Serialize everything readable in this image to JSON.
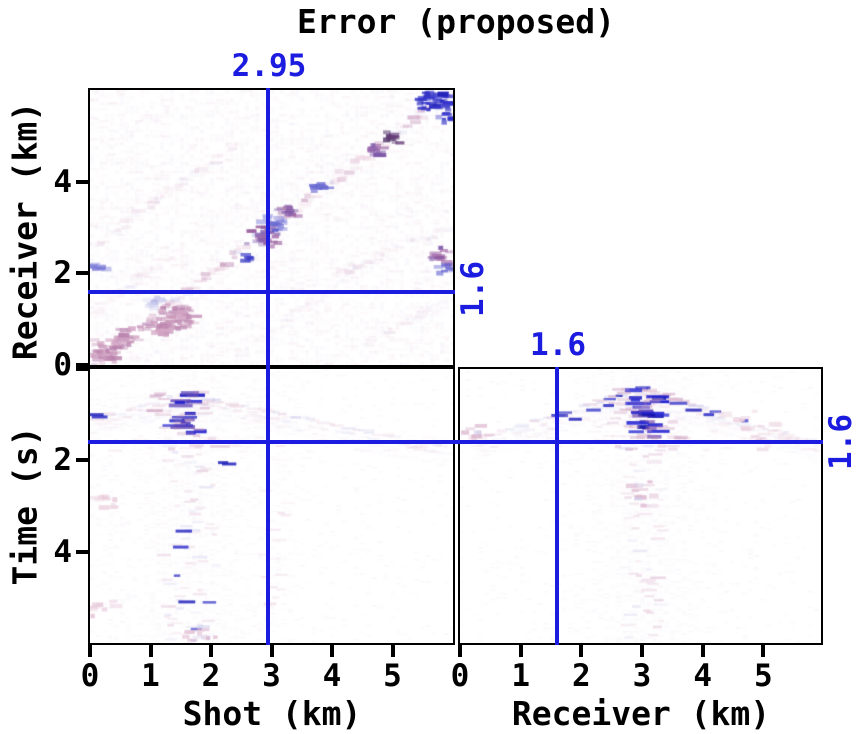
{
  "title": "Error (proposed)",
  "colors": {
    "accent_blue": "#1c1ce0",
    "axis_black": "#000000",
    "background": "#ffffff"
  },
  "markers": {
    "shot_line_km": 2.95,
    "receiver_line_km": 1.6,
    "time_line_s": 1.6,
    "labels": {
      "shot": "2.95",
      "receiver_side": "1.6",
      "receiver_top": "1.6",
      "time_side": "1.6"
    }
  },
  "data_palettes": {
    "pale": [
      "#f4e6ee",
      "#ecdcea",
      "#e6e2f4",
      "#dcdcf2",
      "#f2dce8"
    ],
    "palepink": [
      "#eed5e2",
      "#e6c6d8",
      "#f2e0ea"
    ],
    "mauvepale": [
      "#e0bcd2",
      "#d4a8c6",
      "#e8ccdc",
      "#cfcfee"
    ],
    "mauve": [
      "#d5a8c5",
      "#c490b4",
      "#ba82ae",
      "#cc9ec0"
    ],
    "lav": [
      "#c9c9ec",
      "#b4b4e4",
      "#dcdcf4"
    ],
    "purple": [
      "#9a5f9e",
      "#8a62b0",
      "#a871ae",
      "#7a55a8"
    ],
    "bluemix": [
      "#5555cc",
      "#8888dd",
      "#7070d4"
    ],
    "blue": [
      "#3333cc",
      "#2222bb",
      "#4444cc",
      "#2a2ac4"
    ],
    "dark": [
      "#55356a",
      "#4a2a62",
      "#663a77"
    ],
    "strong": [
      "#1818c0",
      "#2020d2",
      "#1212a8",
      "#6048b8",
      "#2a2ad4"
    ]
  },
  "chart_data": [
    {
      "type": "heatmap",
      "name": "error-shot-vs-receiver",
      "xlabel": "",
      "ylabel": "Receiver (km)",
      "xlim": [
        0,
        6
      ],
      "ylim": [
        0,
        6
      ],
      "y_direction": "up",
      "xticks": [],
      "yticks": [
        0,
        2,
        4
      ],
      "crosshair": {
        "x_km": 2.95,
        "y_km": 1.6
      },
      "description": "Residual error amplitude map, mostly near zero (white) with faint red/blue noise concentrated along the shot=receiver diagonal",
      "features": [
        {
          "type": "noise",
          "cell": [
            5,
            4
          ],
          "prob": 0.5,
          "alpha": [
            0.05,
            0.22
          ],
          "palette": "pale"
        },
        {
          "type": "noise",
          "cell": [
            9,
            3
          ],
          "prob": 0.2,
          "alpha": [
            0.05,
            0.18
          ],
          "palette": "palepink"
        },
        {
          "type": "seg",
          "x0": 0,
          "y0": 0,
          "x1": 5.95,
          "y1": 5.95,
          "strength": 0.5
        },
        {
          "type": "seg",
          "x0": 0,
          "y0": 2.55,
          "x1": 2.4,
          "y1": 4.8,
          "strength": 0.16
        },
        {
          "type": "seg",
          "x0": 0,
          "y0": 1.15,
          "x1": 1.6,
          "y1": 2.6,
          "strength": 0.14
        },
        {
          "type": "seg",
          "x0": 3.3,
          "y0": 1.55,
          "x1": 5.95,
          "y1": 3.0,
          "strength": 0.18
        },
        {
          "type": "seg",
          "x0": 4.55,
          "y0": 0.5,
          "x1": 5.95,
          "y1": 1.45,
          "strength": 0.15
        },
        {
          "type": "seg",
          "x0": 2.6,
          "y0": 0.35,
          "x1": 5.0,
          "y1": 2.6,
          "strength": 0.12
        },
        {
          "type": "blob",
          "x": 0.25,
          "y": 0.28,
          "r": 0.32,
          "n": 40,
          "palette": "mauve"
        },
        {
          "type": "blob",
          "x": 0.6,
          "y": 0.62,
          "r": 0.25,
          "n": 22,
          "palette": "mauve"
        },
        {
          "type": "blob",
          "x": 1.2,
          "y": 0.82,
          "r": 0.3,
          "n": 34,
          "palette": "mauve"
        },
        {
          "type": "blob",
          "x": 1.5,
          "y": 1.05,
          "r": 0.35,
          "n": 44,
          "palette": "mauve"
        },
        {
          "type": "blob",
          "x": 1.05,
          "y": 1.35,
          "r": 0.22,
          "n": 14,
          "palette": "lav"
        },
        {
          "type": "blob",
          "x": 2.6,
          "y": 2.3,
          "r": 0.12,
          "n": 6,
          "palette": "blue"
        },
        {
          "type": "blob",
          "x": 2.85,
          "y": 2.8,
          "r": 0.28,
          "n": 30,
          "palette": "purple"
        },
        {
          "type": "blob",
          "x": 3.05,
          "y": 3.1,
          "r": 0.22,
          "n": 18,
          "palette": "bluemix"
        },
        {
          "type": "blob",
          "x": 3.3,
          "y": 3.4,
          "r": 0.2,
          "n": 14,
          "palette": "purple"
        },
        {
          "type": "blob",
          "x": 3.8,
          "y": 3.9,
          "r": 0.15,
          "n": 10,
          "palette": "bluemix"
        },
        {
          "type": "blob",
          "x": 4.7,
          "y": 4.7,
          "r": 0.2,
          "n": 16,
          "palette": "purple"
        },
        {
          "type": "blob",
          "x": 5.0,
          "y": 4.95,
          "r": 0.16,
          "n": 12,
          "palette": "dark"
        },
        {
          "type": "blob",
          "x": 5.8,
          "y": 2.35,
          "r": 0.22,
          "n": 14,
          "palette": "purple"
        },
        {
          "type": "blob",
          "x": 5.9,
          "y": 2.05,
          "r": 0.15,
          "n": 8,
          "palette": "bluemix"
        },
        {
          "type": "patch",
          "x0": 5.45,
          "x1": 5.95,
          "y0": 5.55,
          "y1": 5.95,
          "n": 40,
          "palette": "blue"
        },
        {
          "type": "blob",
          "x": 5.9,
          "y": 5.35,
          "r": 0.15,
          "n": 8,
          "palette": "blue"
        },
        {
          "type": "blob",
          "x": 0.15,
          "y": 2.1,
          "r": 0.15,
          "n": 7,
          "palette": "bluemix"
        }
      ]
    },
    {
      "type": "heatmap",
      "name": "error-shot-vs-time",
      "xlabel": "Shot (km)",
      "ylabel": "Time (s)",
      "xlim": [
        0,
        6
      ],
      "ylim": [
        0,
        6
      ],
      "y_direction": "down",
      "xticks": [
        0,
        1,
        2,
        3,
        4,
        5
      ],
      "yticks": [
        0,
        2,
        4
      ],
      "crosshair": {
        "x_km": 2.95,
        "t_s": 1.6
      },
      "description": "Common-receiver error gather: tent-shaped moveout arc with apex near shot 1.55 km at 0.55 s, strong blue residuals at the apex, faint vertical coda below",
      "features": [
        {
          "type": "noise",
          "cell": [
            6,
            2
          ],
          "prob": 0.5,
          "alpha": [
            0.05,
            0.22
          ],
          "palette": "pale",
          "base": 0.14,
          "xmod": [
            {
              "c": 1.6,
              "s": 1.0,
              "w": 0.85
            },
            {
              "c": 3.1,
              "s": 0.5,
              "w": 0.25
            },
            {
              "c": 0.1,
              "s": 0.25,
              "w": 0.3
            }
          ]
        },
        {
          "type": "tent",
          "apex": [
            1.55,
            0.55
          ],
          "slope_l": 0.38,
          "slope_r": 0.27,
          "t_end_l": 1.15,
          "t_end_r": 1.75,
          "strength": 0.55
        },
        {
          "type": "dash_column",
          "x0": 1.35,
          "x1": 1.85,
          "t0": 0.5,
          "t1": 1.45,
          "n": 16,
          "palette": "strong",
          "haze": 1
        },
        {
          "type": "faint_column",
          "x0": 1.2,
          "x1": 2.1,
          "t0": 1.6,
          "t1": 6.0,
          "prob": 0.6,
          "palette": "mauvepale"
        },
        {
          "type": "faint_column",
          "x0": 2.85,
          "x1": 3.3,
          "t0": 1.9,
          "t1": 5.2,
          "prob": 0.22,
          "palette": "palepink"
        },
        {
          "type": "hband",
          "t0": 1.5,
          "t1": 1.85,
          "prob": 0.35
        },
        {
          "type": "dots",
          "palette": "blue",
          "items": [
            {
              "x": 0.1,
              "t": 1.0
            },
            {
              "x": 0.16,
              "t": 1.05
            },
            {
              "x": 2.2,
              "t": 2.05
            },
            {
              "x": 2.3,
              "t": 2.08
            },
            {
              "x": 1.5,
              "t": 3.9
            },
            {
              "x": 1.55,
              "t": 3.55
            },
            {
              "x": 1.6,
              "t": 5.1
            }
          ]
        },
        {
          "type": "blob",
          "x": 0.15,
          "y": 3.0,
          "r": 0.4,
          "n": 12,
          "palette": "palepink"
        },
        {
          "type": "blob",
          "x": 0.15,
          "y": 5.2,
          "r": 0.35,
          "n": 10,
          "palette": "palepink"
        },
        {
          "type": "blob",
          "x": 1.8,
          "y": 5.85,
          "r": 0.4,
          "n": 14,
          "palette": "mauvepale"
        }
      ]
    },
    {
      "type": "heatmap",
      "name": "error-receiver-vs-time",
      "xlabel": "Receiver (km)",
      "ylabel": "",
      "xlim": [
        0,
        5.95
      ],
      "ylim": [
        0,
        6
      ],
      "y_direction": "down",
      "xticks": [
        0,
        1,
        2,
        3,
        4,
        5
      ],
      "yticks": [],
      "crosshair": {
        "x_km": 1.6,
        "t_s": 1.6
      },
      "description": "Common-shot error gather: tent-shaped moveout arc with apex near receiver 3.0 km at 0.42 s, strong blue residual column at the apex, faint vertical coda below",
      "features": [
        {
          "type": "noise",
          "cell": [
            6,
            2
          ],
          "prob": 0.5,
          "alpha": [
            0.05,
            0.22
          ],
          "palette": "pale",
          "base": 0.12,
          "xmod": [
            {
              "c": 3.0,
              "s": 0.9,
              "w": 0.9
            }
          ]
        },
        {
          "type": "tent",
          "apex": [
            3.0,
            0.42
          ],
          "slope_l": 0.42,
          "slope_r": 0.42,
          "t_end_l": 1.55,
          "t_end_r": 1.65,
          "strength": 0.6,
          "blue_arms": 1
        },
        {
          "type": "dash_column",
          "x0": 2.82,
          "x1": 3.3,
          "t0": 0.4,
          "t1": 1.5,
          "n": 24,
          "palette": "strong",
          "haze": 1
        },
        {
          "type": "faint_column",
          "x0": 2.7,
          "x1": 3.35,
          "t0": 1.6,
          "t1": 6.0,
          "prob": 0.6,
          "palette": "mauvepale"
        },
        {
          "type": "hband",
          "t0": 1.45,
          "t1": 1.8,
          "prob": 0.3
        },
        {
          "type": "blob",
          "x": 0.35,
          "y": 1.45,
          "r": 0.3,
          "n": 10,
          "palette": "mauvepale"
        },
        {
          "type": "blob",
          "x": 5.2,
          "y": 1.5,
          "r": 0.4,
          "n": 12,
          "palette": "palepink"
        },
        {
          "type": "blob",
          "x": 4.6,
          "y": 1.15,
          "r": 0.35,
          "n": 10,
          "palette": "palepink"
        },
        {
          "type": "blob",
          "x": 3.0,
          "y": 2.75,
          "r": 0.3,
          "n": 12,
          "palette": "mauvepale"
        },
        {
          "type": "dots",
          "palette": "blue",
          "items": [
            {
              "x": 2.2,
              "t": 0.9
            },
            {
              "x": 2.45,
              "t": 0.8
            },
            {
              "x": 3.6,
              "t": 0.75
            },
            {
              "x": 3.85,
              "t": 0.9
            },
            {
              "x": 4.1,
              "t": 1.0
            },
            {
              "x": 1.9,
              "t": 1.1
            }
          ]
        }
      ]
    }
  ]
}
